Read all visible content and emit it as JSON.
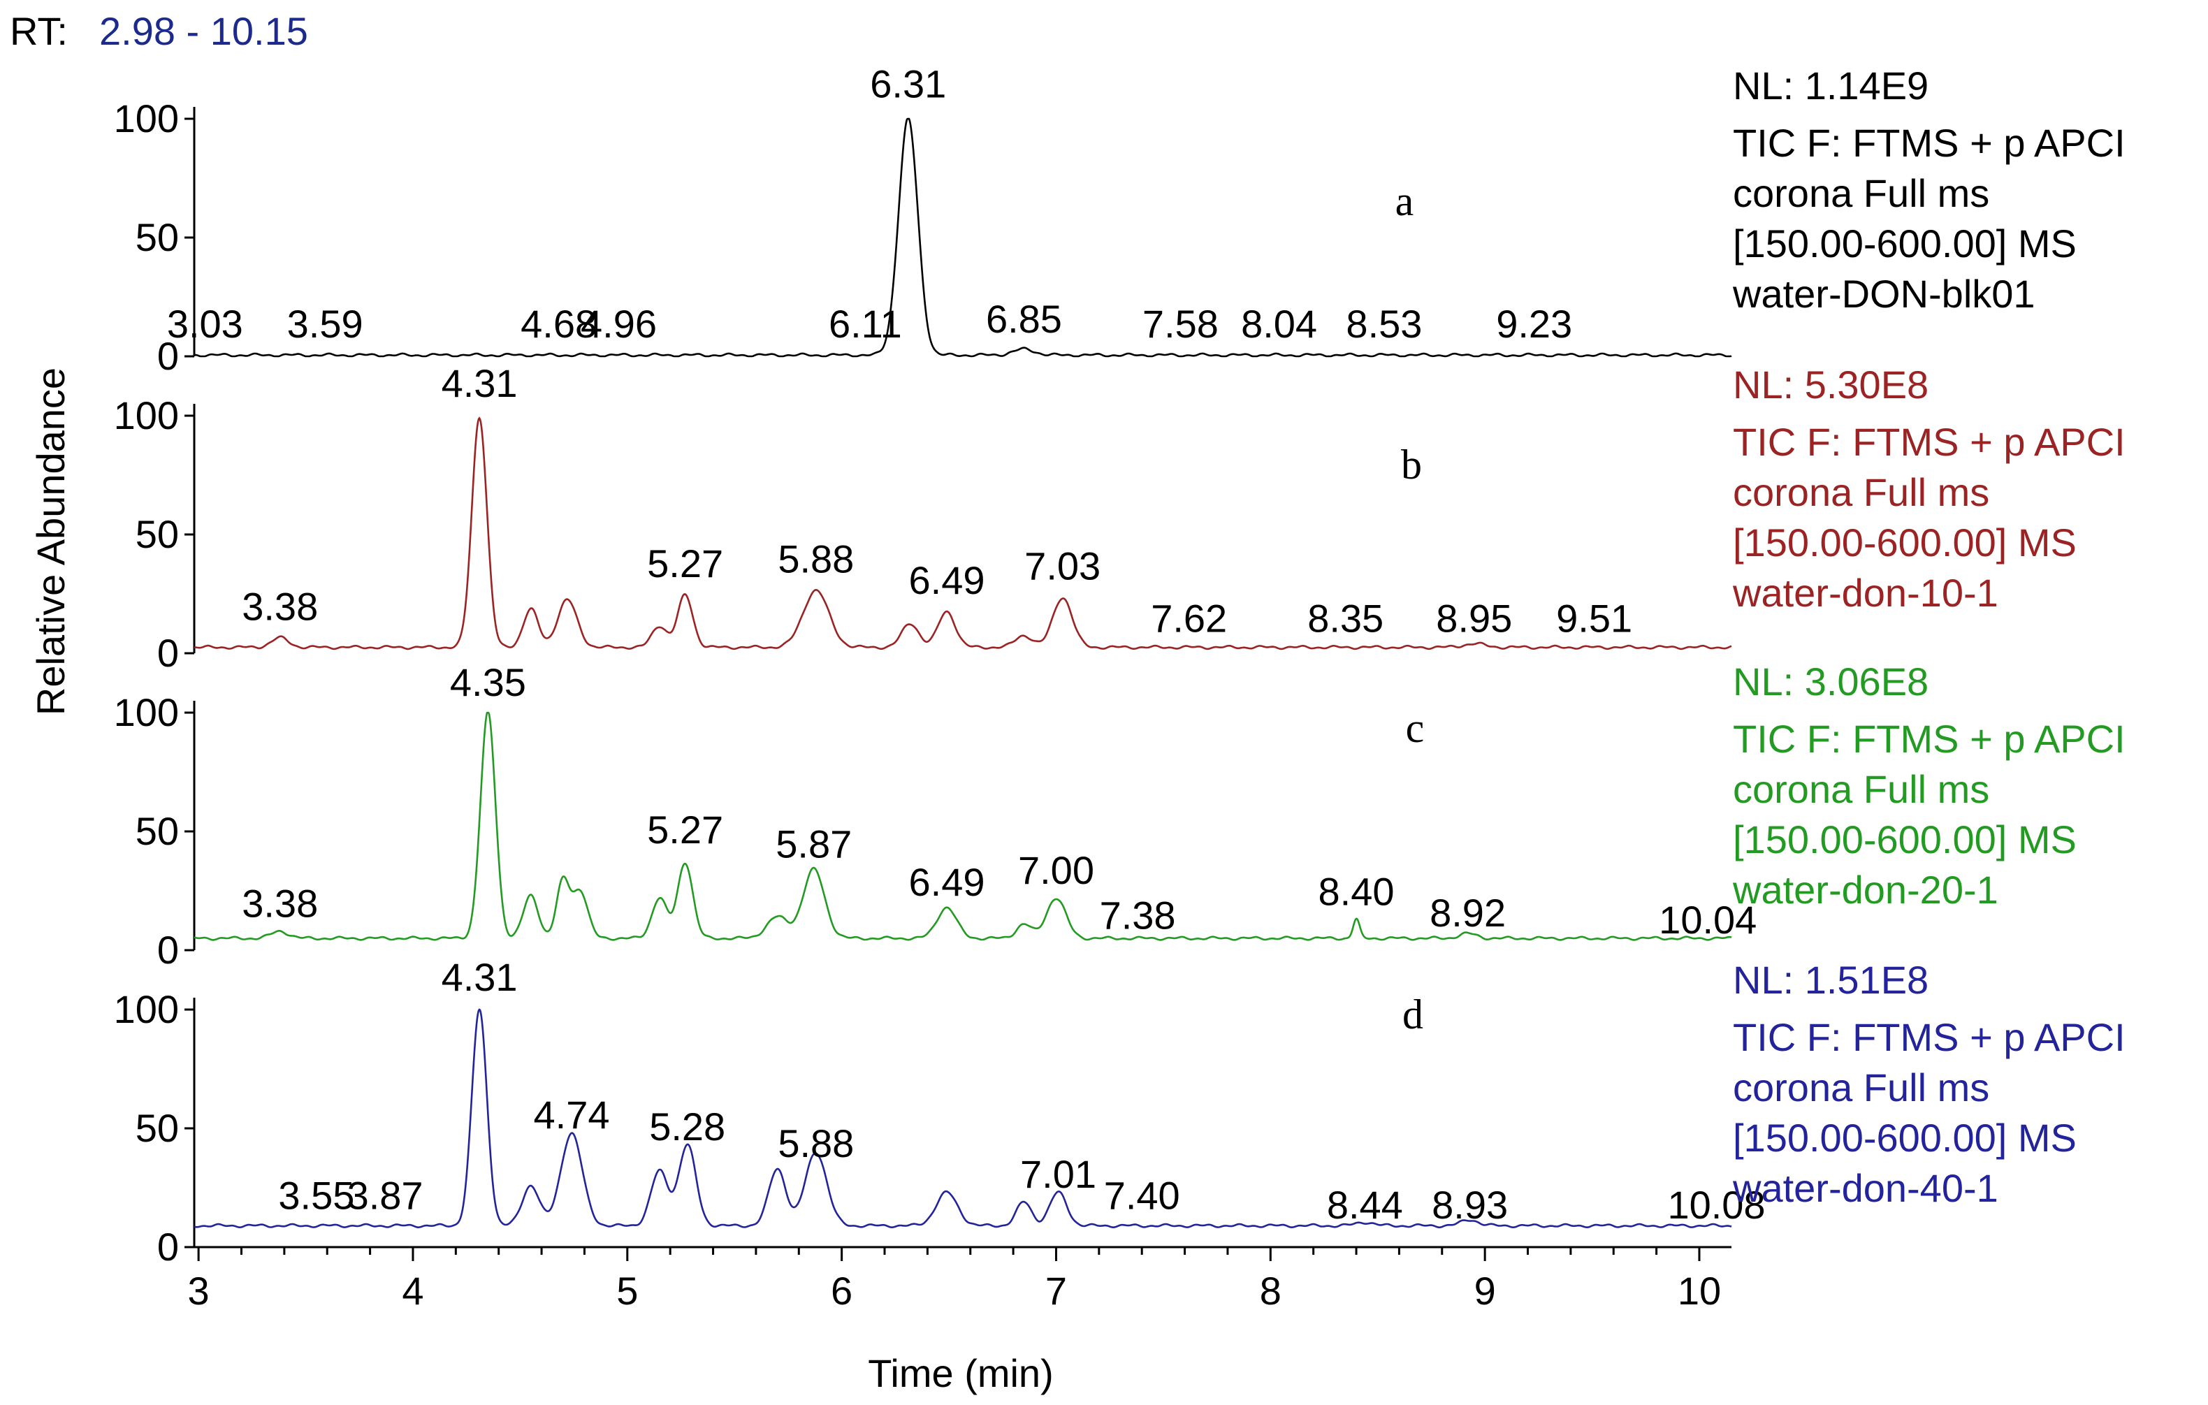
{
  "header": {
    "rt_label": "RT:",
    "rt_range": "2.98 - 10.15",
    "rt_color": "#1c2a8c"
  },
  "chart_data": {
    "type": "line",
    "xlabel": "Time (min)",
    "ylabel": "Relative Abundance",
    "xlim": [
      2.98,
      10.15
    ],
    "ylim": [
      0,
      100
    ],
    "x_ticks": [
      "3",
      "4",
      "5",
      "6",
      "7",
      "8",
      "9",
      "10"
    ],
    "y_ticks": [
      "0",
      "50",
      "100"
    ],
    "panels": [
      {
        "letter": "a",
        "color": "#000000",
        "nl": "NL: 1.14E9",
        "info": [
          "TIC F: FTMS + p APCI",
          "corona Full ms",
          "[150.00-600.00]  MS",
          "water-DON-blk01"
        ],
        "baseline": 0.5,
        "peaks": [
          {
            "rt": 6.31,
            "height": 99.5,
            "width": 0.045
          },
          {
            "rt": 6.85,
            "height": 2.5,
            "width": 0.05
          }
        ],
        "labels": [
          {
            "rt": 3.03,
            "text": "3.03",
            "y": 8
          },
          {
            "rt": 3.59,
            "text": "3.59",
            "y": 8
          },
          {
            "rt": 4.68,
            "text": "4.68",
            "y": 8
          },
          {
            "rt": 4.96,
            "text": "4.96",
            "y": 8
          },
          {
            "rt": 6.11,
            "text": "6.11",
            "y": 8
          },
          {
            "rt": 6.31,
            "text": "6.31",
            "y": 109
          },
          {
            "rt": 6.85,
            "text": "6.85",
            "y": 10
          },
          {
            "rt": 7.58,
            "text": "7.58",
            "y": 8
          },
          {
            "rt": 8.04,
            "text": "8.04",
            "y": 8
          },
          {
            "rt": 8.53,
            "text": "8.53",
            "y": 8
          },
          {
            "rt": 9.23,
            "text": "9.23",
            "y": 8
          }
        ]
      },
      {
        "letter": "b",
        "color": "#9b2323",
        "nl": "NL: 5.30E8",
        "info": [
          "TIC F: FTMS + p APCI",
          "corona Full ms",
          "[150.00-600.00]  MS",
          "water-don-10-1"
        ],
        "baseline": 2.5,
        "peaks": [
          {
            "rt": 3.38,
            "height": 4,
            "width": 0.04
          },
          {
            "rt": 4.31,
            "height": 97,
            "width": 0.035
          },
          {
            "rt": 4.55,
            "height": 16,
            "width": 0.035
          },
          {
            "rt": 4.72,
            "height": 20,
            "width": 0.045
          },
          {
            "rt": 5.15,
            "height": 9,
            "width": 0.035
          },
          {
            "rt": 5.27,
            "height": 22,
            "width": 0.035
          },
          {
            "rt": 5.88,
            "height": 24,
            "width": 0.06
          },
          {
            "rt": 6.32,
            "height": 10,
            "width": 0.04
          },
          {
            "rt": 6.49,
            "height": 15,
            "width": 0.04
          },
          {
            "rt": 6.85,
            "height": 5,
            "width": 0.04
          },
          {
            "rt": 7.03,
            "height": 21,
            "width": 0.045
          },
          {
            "rt": 8.95,
            "height": 1.5,
            "width": 0.05
          }
        ],
        "labels": [
          {
            "rt": 3.38,
            "text": "3.38",
            "y": 14
          },
          {
            "rt": 4.31,
            "text": "4.31",
            "y": 108
          },
          {
            "rt": 5.27,
            "text": "5.27",
            "y": 32
          },
          {
            "rt": 5.88,
            "text": "5.88",
            "y": 34
          },
          {
            "rt": 6.49,
            "text": "6.49",
            "y": 25
          },
          {
            "rt": 7.03,
            "text": "7.03",
            "y": 31
          },
          {
            "rt": 7.62,
            "text": "7.62",
            "y": 9
          },
          {
            "rt": 8.35,
            "text": "8.35",
            "y": 9
          },
          {
            "rt": 8.95,
            "text": "8.95",
            "y": 9
          },
          {
            "rt": 9.51,
            "text": "9.51",
            "y": 9
          }
        ]
      },
      {
        "letter": "c",
        "color": "#239b23",
        "nl": "NL: 3.06E8",
        "info": [
          "TIC F: FTMS + p APCI",
          "corona Full ms",
          "[150.00-600.00]  MS",
          "water-don-20-1"
        ],
        "baseline": 5,
        "peaks": [
          {
            "rt": 3.38,
            "height": 3,
            "width": 0.04
          },
          {
            "rt": 4.35,
            "height": 95,
            "width": 0.035
          },
          {
            "rt": 4.55,
            "height": 18,
            "width": 0.035
          },
          {
            "rt": 4.7,
            "height": 24,
            "width": 0.03
          },
          {
            "rt": 4.78,
            "height": 20,
            "width": 0.035
          },
          {
            "rt": 5.15,
            "height": 17,
            "width": 0.035
          },
          {
            "rt": 5.27,
            "height": 32,
            "width": 0.035
          },
          {
            "rt": 5.7,
            "height": 9,
            "width": 0.05
          },
          {
            "rt": 5.87,
            "height": 29,
            "width": 0.05
          },
          {
            "rt": 6.49,
            "height": 13,
            "width": 0.045
          },
          {
            "rt": 6.85,
            "height": 6,
            "width": 0.035
          },
          {
            "rt": 7.0,
            "height": 17,
            "width": 0.045
          },
          {
            "rt": 8.4,
            "height": 8,
            "width": 0.015
          },
          {
            "rt": 8.92,
            "height": 2,
            "width": 0.04
          }
        ],
        "labels": [
          {
            "rt": 3.38,
            "text": "3.38",
            "y": 14
          },
          {
            "rt": 4.35,
            "text": "4.35",
            "y": 107
          },
          {
            "rt": 5.27,
            "text": "5.27",
            "y": 45
          },
          {
            "rt": 5.87,
            "text": "5.87",
            "y": 39
          },
          {
            "rt": 6.49,
            "text": "6.49",
            "y": 23
          },
          {
            "rt": 7.0,
            "text": "7.00",
            "y": 28
          },
          {
            "rt": 7.38,
            "text": "7.38",
            "y": 9
          },
          {
            "rt": 8.4,
            "text": "8.40",
            "y": 19
          },
          {
            "rt": 8.92,
            "text": "8.92",
            "y": 10
          },
          {
            "rt": 10.04,
            "text": "10.04",
            "y": 7
          }
        ]
      },
      {
        "letter": "d",
        "color": "#23239b",
        "nl": "NL: 1.51E8",
        "info": [
          "TIC F: FTMS + p APCI",
          "corona Full ms",
          "[150.00-600.00]  MS",
          "water-don-40-1"
        ],
        "baseline": 9,
        "peaks": [
          {
            "rt": 4.31,
            "height": 91,
            "width": 0.035
          },
          {
            "rt": 4.55,
            "height": 17,
            "width": 0.04
          },
          {
            "rt": 4.74,
            "height": 39,
            "width": 0.05
          },
          {
            "rt": 5.15,
            "height": 23,
            "width": 0.04
          },
          {
            "rt": 5.28,
            "height": 34,
            "width": 0.04
          },
          {
            "rt": 5.7,
            "height": 24,
            "width": 0.04
          },
          {
            "rt": 5.88,
            "height": 31,
            "width": 0.05
          },
          {
            "rt": 6.49,
            "height": 14,
            "width": 0.05
          },
          {
            "rt": 6.85,
            "height": 10,
            "width": 0.035
          },
          {
            "rt": 7.01,
            "height": 14,
            "width": 0.04
          },
          {
            "rt": 8.44,
            "height": 1.5,
            "width": 0.04
          },
          {
            "rt": 8.93,
            "height": 2.5,
            "width": 0.04
          }
        ],
        "labels": [
          {
            "rt": 3.55,
            "text": "3.55",
            "y": 16
          },
          {
            "rt": 3.87,
            "text": "3.87",
            "y": 16
          },
          {
            "rt": 4.31,
            "text": "4.31",
            "y": 108
          },
          {
            "rt": 4.74,
            "text": "4.74",
            "y": 50
          },
          {
            "rt": 5.28,
            "text": "5.28",
            "y": 45
          },
          {
            "rt": 5.88,
            "text": "5.88",
            "y": 38
          },
          {
            "rt": 7.01,
            "text": "7.01",
            "y": 25
          },
          {
            "rt": 7.4,
            "text": "7.40",
            "y": 16
          },
          {
            "rt": 8.44,
            "text": "8.44",
            "y": 12
          },
          {
            "rt": 8.93,
            "text": "8.93",
            "y": 12
          },
          {
            "rt": 10.08,
            "text": "10.08",
            "y": 12
          }
        ]
      }
    ]
  }
}
